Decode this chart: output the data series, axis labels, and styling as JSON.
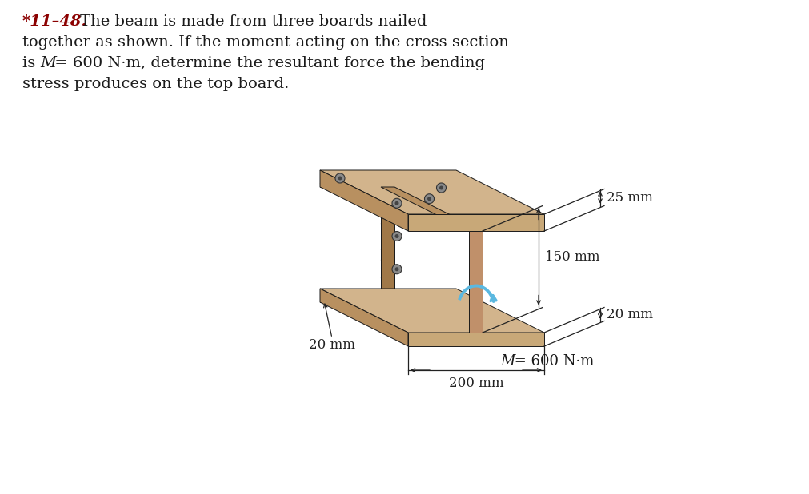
{
  "background_color": "#ffffff",
  "title_number": "*11–48.",
  "title_number_color": "#8B0000",
  "line1_prefix": "",
  "line1": "  The beam is made from three boards nailed",
  "line2": "together as shown. If the moment acting on the cross section",
  "line3a": "is ",
  "line3b": "M",
  "line3c": " = 600 N·m, determine the resultant force the bending",
  "line4": "stress produces on the top board.",
  "dim_25mm": "25 mm",
  "dim_150mm": "150 mm",
  "dim_20mm_right": "20 mm",
  "dim_200mm": "200 mm",
  "dim_20mm_bottom": "20 mm",
  "moment_label_M": "M",
  "moment_label_rest": " = 600 N·m",
  "wood_top_face": "#D2B48C",
  "wood_front_face": "#C8A878",
  "wood_side_face": "#B89060",
  "wood_dark_face": "#A07848",
  "wood_cut_face": "#C0906A",
  "wood_grain1": "#BFA070",
  "wood_grain2": "#D4B890",
  "nail_outer": "#8A8A8A",
  "nail_inner": "#444444",
  "line_color": "#1a1a1a",
  "arrow_color": "#5BB8E0",
  "dim_line_color": "#222222",
  "text_color": "#1a1a1a",
  "font_size_text": 14,
  "font_size_dim": 12,
  "fig_width": 10.12,
  "fig_height": 6.18,
  "dpi": 100
}
